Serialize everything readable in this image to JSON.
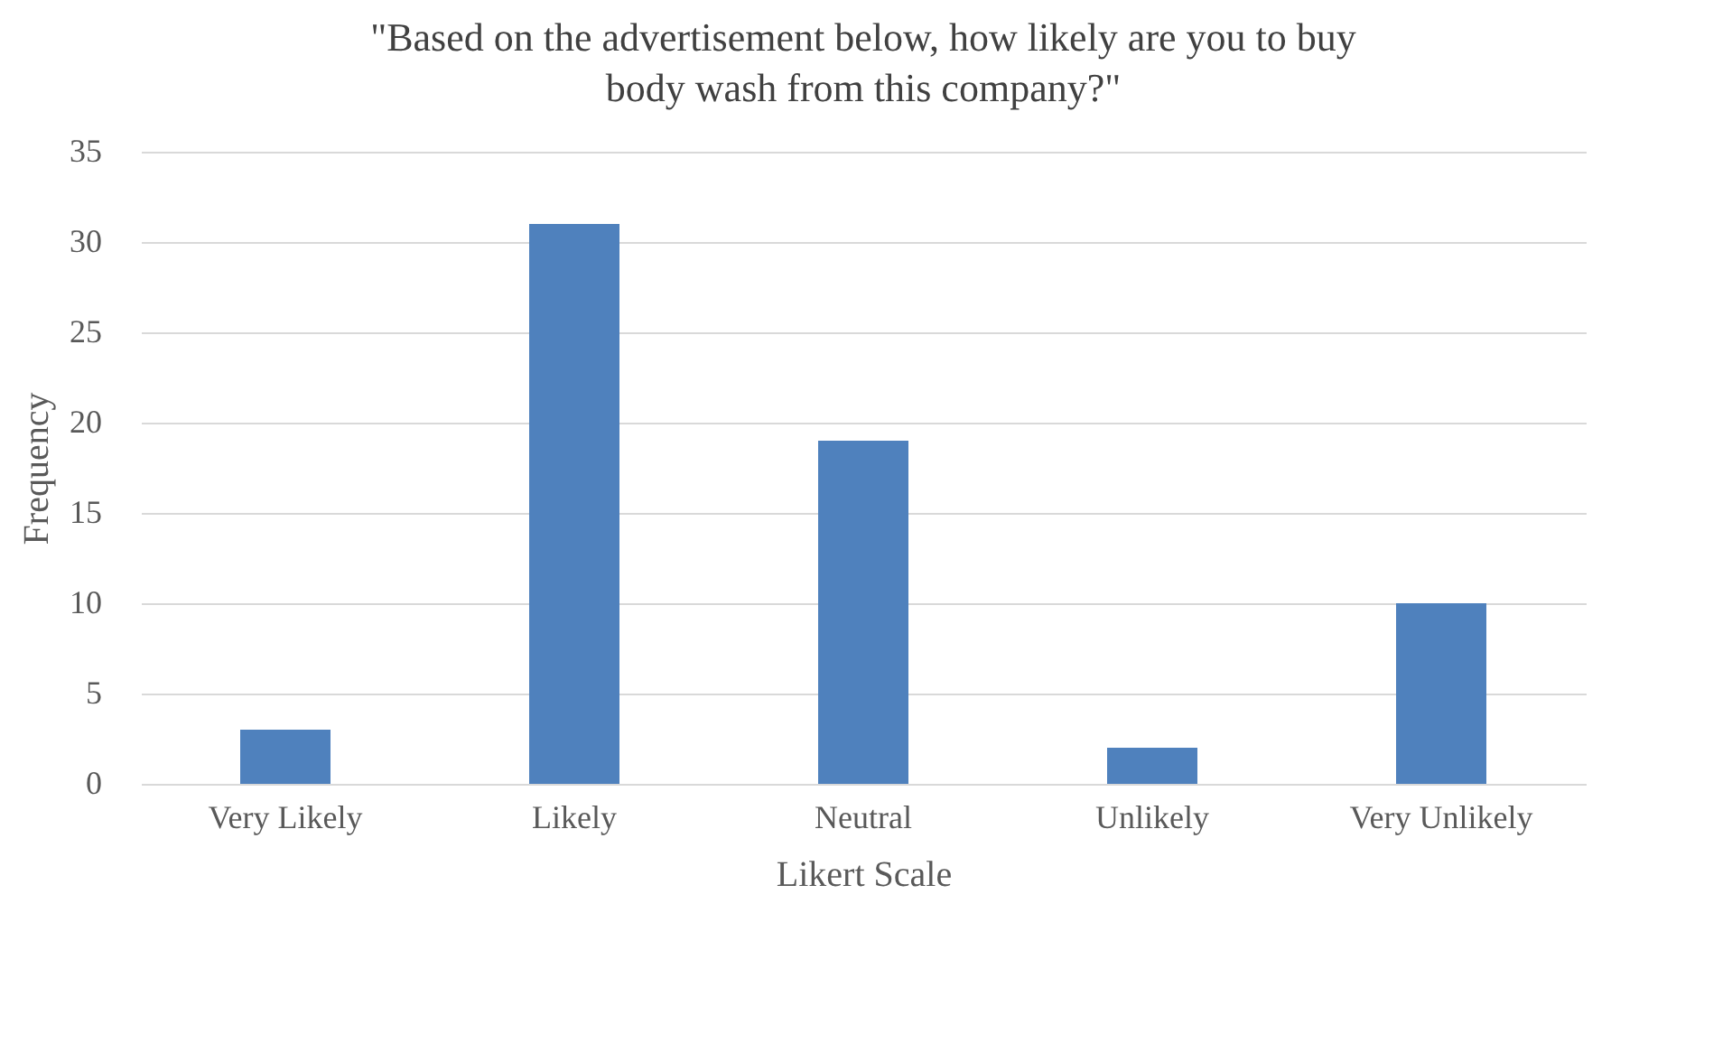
{
  "chart_data": {
    "type": "bar",
    "title": "\"Based  on the advertisement below, how likely are you to buy\nbody wash from this company?\"",
    "xlabel": "Likert Scale",
    "ylabel": "Frequency",
    "categories": [
      "Very Likely",
      "Likely",
      "Neutral",
      "Unlikely",
      "Very Unlikely"
    ],
    "values": [
      3,
      31,
      19,
      2,
      10
    ],
    "color": "#4f81bd",
    "ylim": [
      0,
      35
    ],
    "yticks": [
      0,
      5,
      10,
      15,
      20,
      25,
      30,
      35
    ],
    "grid": "y"
  }
}
